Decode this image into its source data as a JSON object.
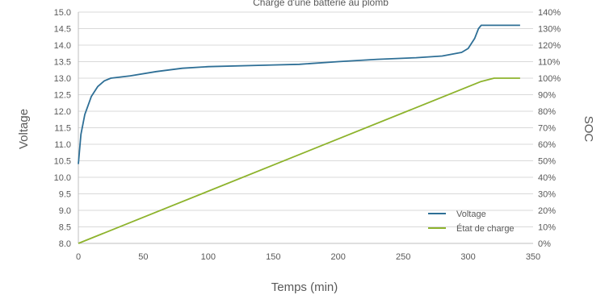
{
  "chart_data": {
    "type": "line",
    "title": "Charge d'une batterie au plomb",
    "xlabel": "Temps (min)",
    "ylabel": "Voltage",
    "y2label": "SOC",
    "xlim": [
      0,
      350
    ],
    "ylim": [
      8.0,
      15.0
    ],
    "y2lim": [
      0,
      140
    ],
    "x_ticks": [
      0,
      50,
      100,
      150,
      200,
      250,
      300,
      350
    ],
    "y_ticks": [
      "8.0",
      "8.5",
      "9.0",
      "9.5",
      "10.0",
      "10.5",
      "11.0",
      "11.5",
      "12.0",
      "12.5",
      "13.0",
      "13.5",
      "14.0",
      "14.5",
      "15.0"
    ],
    "y2_ticks": [
      "0%",
      "10%",
      "20%",
      "30%",
      "40%",
      "50%",
      "60%",
      "70%",
      "80%",
      "90%",
      "100%",
      "110%",
      "120%",
      "130%",
      "140%"
    ],
    "grid": true,
    "legend_position": "bottom-right",
    "series": [
      {
        "name": "Voltage",
        "axis": "left",
        "color": "#2e6f96",
        "x": [
          0,
          2,
          5,
          10,
          15,
          20,
          25,
          40,
          60,
          80,
          100,
          150,
          170,
          200,
          230,
          260,
          280,
          295,
          300,
          305,
          308,
          310,
          320,
          340
        ],
        "y": [
          10.4,
          11.3,
          11.9,
          12.45,
          12.75,
          12.92,
          13.0,
          13.07,
          13.2,
          13.3,
          13.35,
          13.4,
          13.42,
          13.5,
          13.57,
          13.62,
          13.67,
          13.78,
          13.9,
          14.2,
          14.5,
          14.6,
          14.6,
          14.6
        ]
      },
      {
        "name": "État de charge",
        "axis": "right",
        "color": "#8db32c",
        "x": [
          0,
          310,
          320,
          340
        ],
        "y": [
          0,
          98,
          100,
          100
        ]
      }
    ]
  }
}
